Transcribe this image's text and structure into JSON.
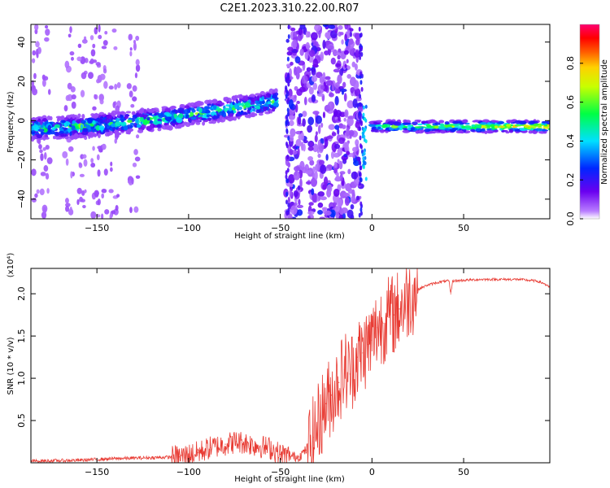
{
  "title": "C2E1.2023.310.22.00.R07",
  "colors": {
    "snr_line": "#e83a32",
    "axis": "#000000",
    "spectrogram_bg": "#ffffff"
  },
  "chart_data": [
    {
      "type": "heatmap",
      "name": "spectrogram",
      "xlabel": "Height of straight line (km)",
      "ylabel": "Frequency (Hz)",
      "xlim": [
        -186,
        97
      ],
      "ylim": [
        -50,
        49
      ],
      "xticks": [
        -150,
        -100,
        -50,
        0,
        50
      ],
      "yticks": [
        -40,
        -20,
        0,
        20,
        40
      ],
      "grid": false,
      "colormap": "rainbow (purple-blue-cyan-green-yellow-red-magenta)",
      "colorbar": {
        "label": "Normalized spectral amplitude",
        "range": [
          0,
          1
        ],
        "ticks": [
          0.0,
          0.2,
          0.4,
          0.6,
          0.8
        ]
      },
      "features": [
        {
          "segment": "dense band",
          "x_range": [
            -186,
            -52
          ],
          "center_freq_from": -4,
          "center_freq_to": 10,
          "peak_amplitude": 0.6
        },
        {
          "segment": "broadband scatter",
          "x_range": [
            -47,
            -6
          ],
          "freq_range": [
            -50,
            49
          ],
          "peak_amplitude": 0.25
        },
        {
          "segment": "narrow line",
          "x_range": [
            0,
            97
          ],
          "center_freq": -3,
          "peak_amplitude": 0.9
        }
      ]
    },
    {
      "type": "line",
      "name": "snr",
      "xlabel": "Height of straight line (km)",
      "ylabel": "SNR (10 * v/v)",
      "y_multiplier": "(x10⁴)",
      "xlim": [
        -186,
        97
      ],
      "ylim": [
        0,
        2.3
      ],
      "xticks": [
        -150,
        -100,
        -50,
        0,
        50
      ],
      "yticks": [
        0.5,
        1.0,
        1.5,
        2.0
      ],
      "grid": false,
      "series": [
        {
          "x": [
            -186,
            -160,
            -140,
            -120,
            -105,
            -95,
            -88,
            -80,
            -74,
            -70,
            -62,
            -55,
            -50,
            -45,
            -40,
            -36,
            -32,
            -28,
            -25,
            -22,
            -18,
            -15,
            -12,
            -8,
            -5,
            -2,
            0,
            3,
            6,
            8,
            10,
            12,
            15,
            20,
            25,
            30,
            35,
            40,
            42,
            43,
            44,
            50,
            60,
            70,
            80,
            85,
            90,
            94,
            97
          ],
          "y": [
            0.02,
            0.03,
            0.05,
            0.06,
            0.07,
            0.12,
            0.18,
            0.22,
            0.25,
            0.24,
            0.2,
            0.17,
            0.1,
            0.08,
            0.07,
            0.15,
            0.3,
            0.55,
            0.7,
            0.8,
            0.95,
            1.1,
            1.05,
            1.25,
            1.3,
            1.4,
            1.45,
            1.6,
            1.65,
            1.7,
            1.75,
            1.75,
            1.82,
            1.95,
            2.05,
            2.1,
            2.13,
            2.15,
            2.15,
            2.0,
            2.15,
            2.16,
            2.17,
            2.17,
            2.17,
            2.16,
            2.15,
            2.12,
            2.07
          ]
        }
      ]
    }
  ]
}
